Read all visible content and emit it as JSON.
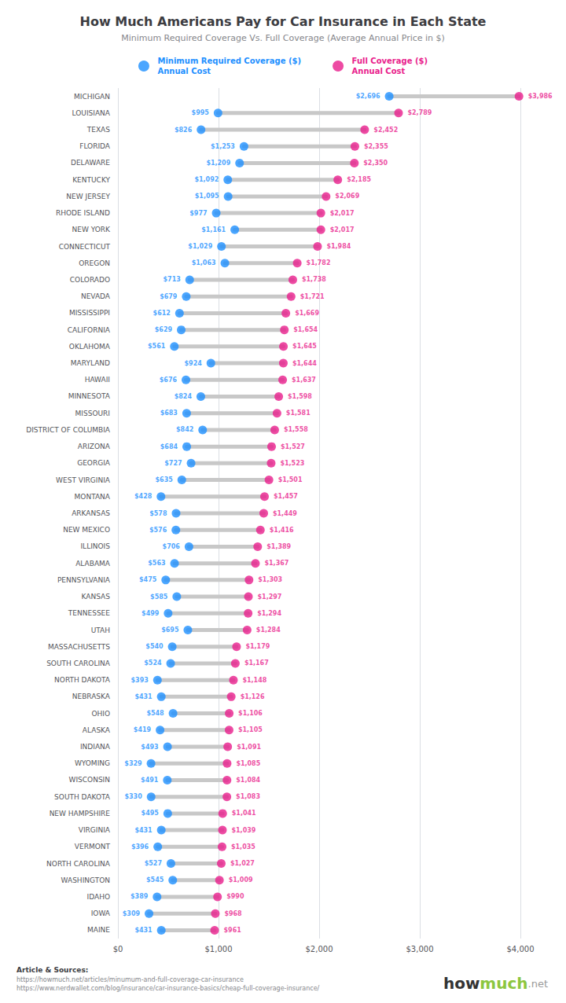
{
  "chart_data": {
    "type": "dumbbell",
    "orientation": "horizontal",
    "title": "How Much Americans Pay for Car Insurance in Each State",
    "subtitle": "Minimum Required Coverage Vs. Full Coverage (Average Annual Price in $)",
    "categories": [
      "MICHIGAN",
      "LOUISIANA",
      "TEXAS",
      "FLORIDA",
      "DELAWARE",
      "KENTUCKY",
      "NEW JERSEY",
      "RHODE ISLAND",
      "NEW YORK",
      "CONNECTICUT",
      "OREGON",
      "COLORADO",
      "NEVADA",
      "MISSISSIPPI",
      "CALIFORNIA",
      "OKLAHOMA",
      "MARYLAND",
      "HAWAII",
      "MINNESOTA",
      "MISSOURI",
      "DISTRICT OF COLUMBIA",
      "ARIZONA",
      "GEORGIA",
      "WEST VIRGINIA",
      "MONTANA",
      "ARKANSAS",
      "NEW MEXICO",
      "ILLINOIS",
      "ALABAMA",
      "PENNSYLVANIA",
      "KANSAS",
      "TENNESSEE",
      "UTAH",
      "MASSACHUSETTS",
      "SOUTH CAROLINA",
      "NORTH DAKOTA",
      "NEBRASKA",
      "OHIO",
      "ALASKA",
      "INDIANA",
      "WYOMING",
      "WISCONSIN",
      "SOUTH DAKOTA",
      "NEW HAMPSHIRE",
      "VIRGINIA",
      "VERMONT",
      "NORTH CAROLINA",
      "WASHINGTON",
      "IDAHO",
      "IOWA",
      "MAINE"
    ],
    "series": [
      {
        "name": "Minimum Required Coverage ($)\nAnnual Cost",
        "color": "#1E90FF",
        "values": [
          2696,
          995,
          826,
          1253,
          1209,
          1092,
          1095,
          977,
          1161,
          1029,
          1063,
          713,
          679,
          612,
          629,
          561,
          924,
          676,
          824,
          683,
          842,
          684,
          727,
          635,
          428,
          578,
          576,
          706,
          563,
          475,
          585,
          499,
          695,
          540,
          524,
          393,
          431,
          548,
          419,
          493,
          329,
          491,
          330,
          495,
          431,
          396,
          527,
          545,
          389,
          309,
          431
        ],
        "value_labels": [
          "$2,696",
          "$995",
          "$826",
          "$1,253",
          "$1,209",
          "$1,092",
          "$1,095",
          "$977",
          "$1,161",
          "$1,029",
          "$1,063",
          "$713",
          "$679",
          "$612",
          "$629",
          "$561",
          "$924",
          "$676",
          "$824",
          "$683",
          "$842",
          "$684",
          "$727",
          "$635",
          "$428",
          "$578",
          "$576",
          "$706",
          "$563",
          "$475",
          "$585",
          "$499",
          "$695",
          "$540",
          "$524",
          "$393",
          "$431",
          "$548",
          "$419",
          "$493",
          "$329",
          "$491",
          "$330",
          "$495",
          "$431",
          "$396",
          "$527",
          "$545",
          "$389",
          "$309",
          "$431"
        ]
      },
      {
        "name": "Full Coverage ($)\nAnnual Cost",
        "color": "#E91E8C",
        "values": [
          3986,
          2789,
          2452,
          2355,
          2350,
          2185,
          2069,
          2017,
          2017,
          1984,
          1782,
          1738,
          1721,
          1669,
          1654,
          1645,
          1644,
          1637,
          1598,
          1581,
          1558,
          1527,
          1523,
          1501,
          1457,
          1449,
          1416,
          1389,
          1367,
          1303,
          1297,
          1294,
          1284,
          1179,
          1167,
          1148,
          1126,
          1106,
          1105,
          1091,
          1085,
          1084,
          1083,
          1041,
          1039,
          1035,
          1027,
          1009,
          990,
          968,
          961
        ],
        "value_labels": [
          "$3,986",
          "$2,789",
          "$2,452",
          "$2,355",
          "$2,350",
          "$2,185",
          "$2,069",
          "$2,017",
          "$2,017",
          "$1,984",
          "$1,782",
          "$1,738",
          "$1,721",
          "$1,669",
          "$1,654",
          "$1,645",
          "$1,644",
          "$1,637",
          "$1,598",
          "$1,581",
          "$1,558",
          "$1,527",
          "$1,523",
          "$1,501",
          "$1,457",
          "$1,449",
          "$1,416",
          "$1,389",
          "$1,367",
          "$1,303",
          "$1,297",
          "$1,294",
          "$1,284",
          "$1,179",
          "$1,167",
          "$1,148",
          "$1,126",
          "$1,106",
          "$1,105",
          "$1,091",
          "$1,085",
          "$1,084",
          "$1,083",
          "$1,041",
          "$1,039",
          "$1,035",
          "$1,027",
          "$1,009",
          "$990",
          "$968",
          "$961"
        ]
      }
    ],
    "connector_color": "#C8C8C8",
    "xlim": [
      0,
      4000
    ],
    "xticks": [
      {
        "value": 0,
        "label": "$0"
      },
      {
        "value": 1000,
        "label": "$1,000"
      },
      {
        "value": 2000,
        "label": "$2,000"
      },
      {
        "value": 3000,
        "label": "$3,000"
      },
      {
        "value": 4000,
        "label": "$4,000"
      }
    ],
    "grid": true,
    "legend": "top",
    "data_labels": true,
    "source": [
      "Article & Sources:",
      "https://howmuch.net/articles/minumum-and-full-coverage-car-insurance",
      "https://www.nerdwallet.com/blog/insurance/car-insurance-basics/cheap-full-coverage-insurance/"
    ],
    "logo": [
      {
        "text": "how",
        "color": "#333333"
      },
      {
        "text": "much",
        "color": "#8DC63F"
      },
      {
        "text": ".net",
        "color": "#999999"
      }
    ]
  }
}
